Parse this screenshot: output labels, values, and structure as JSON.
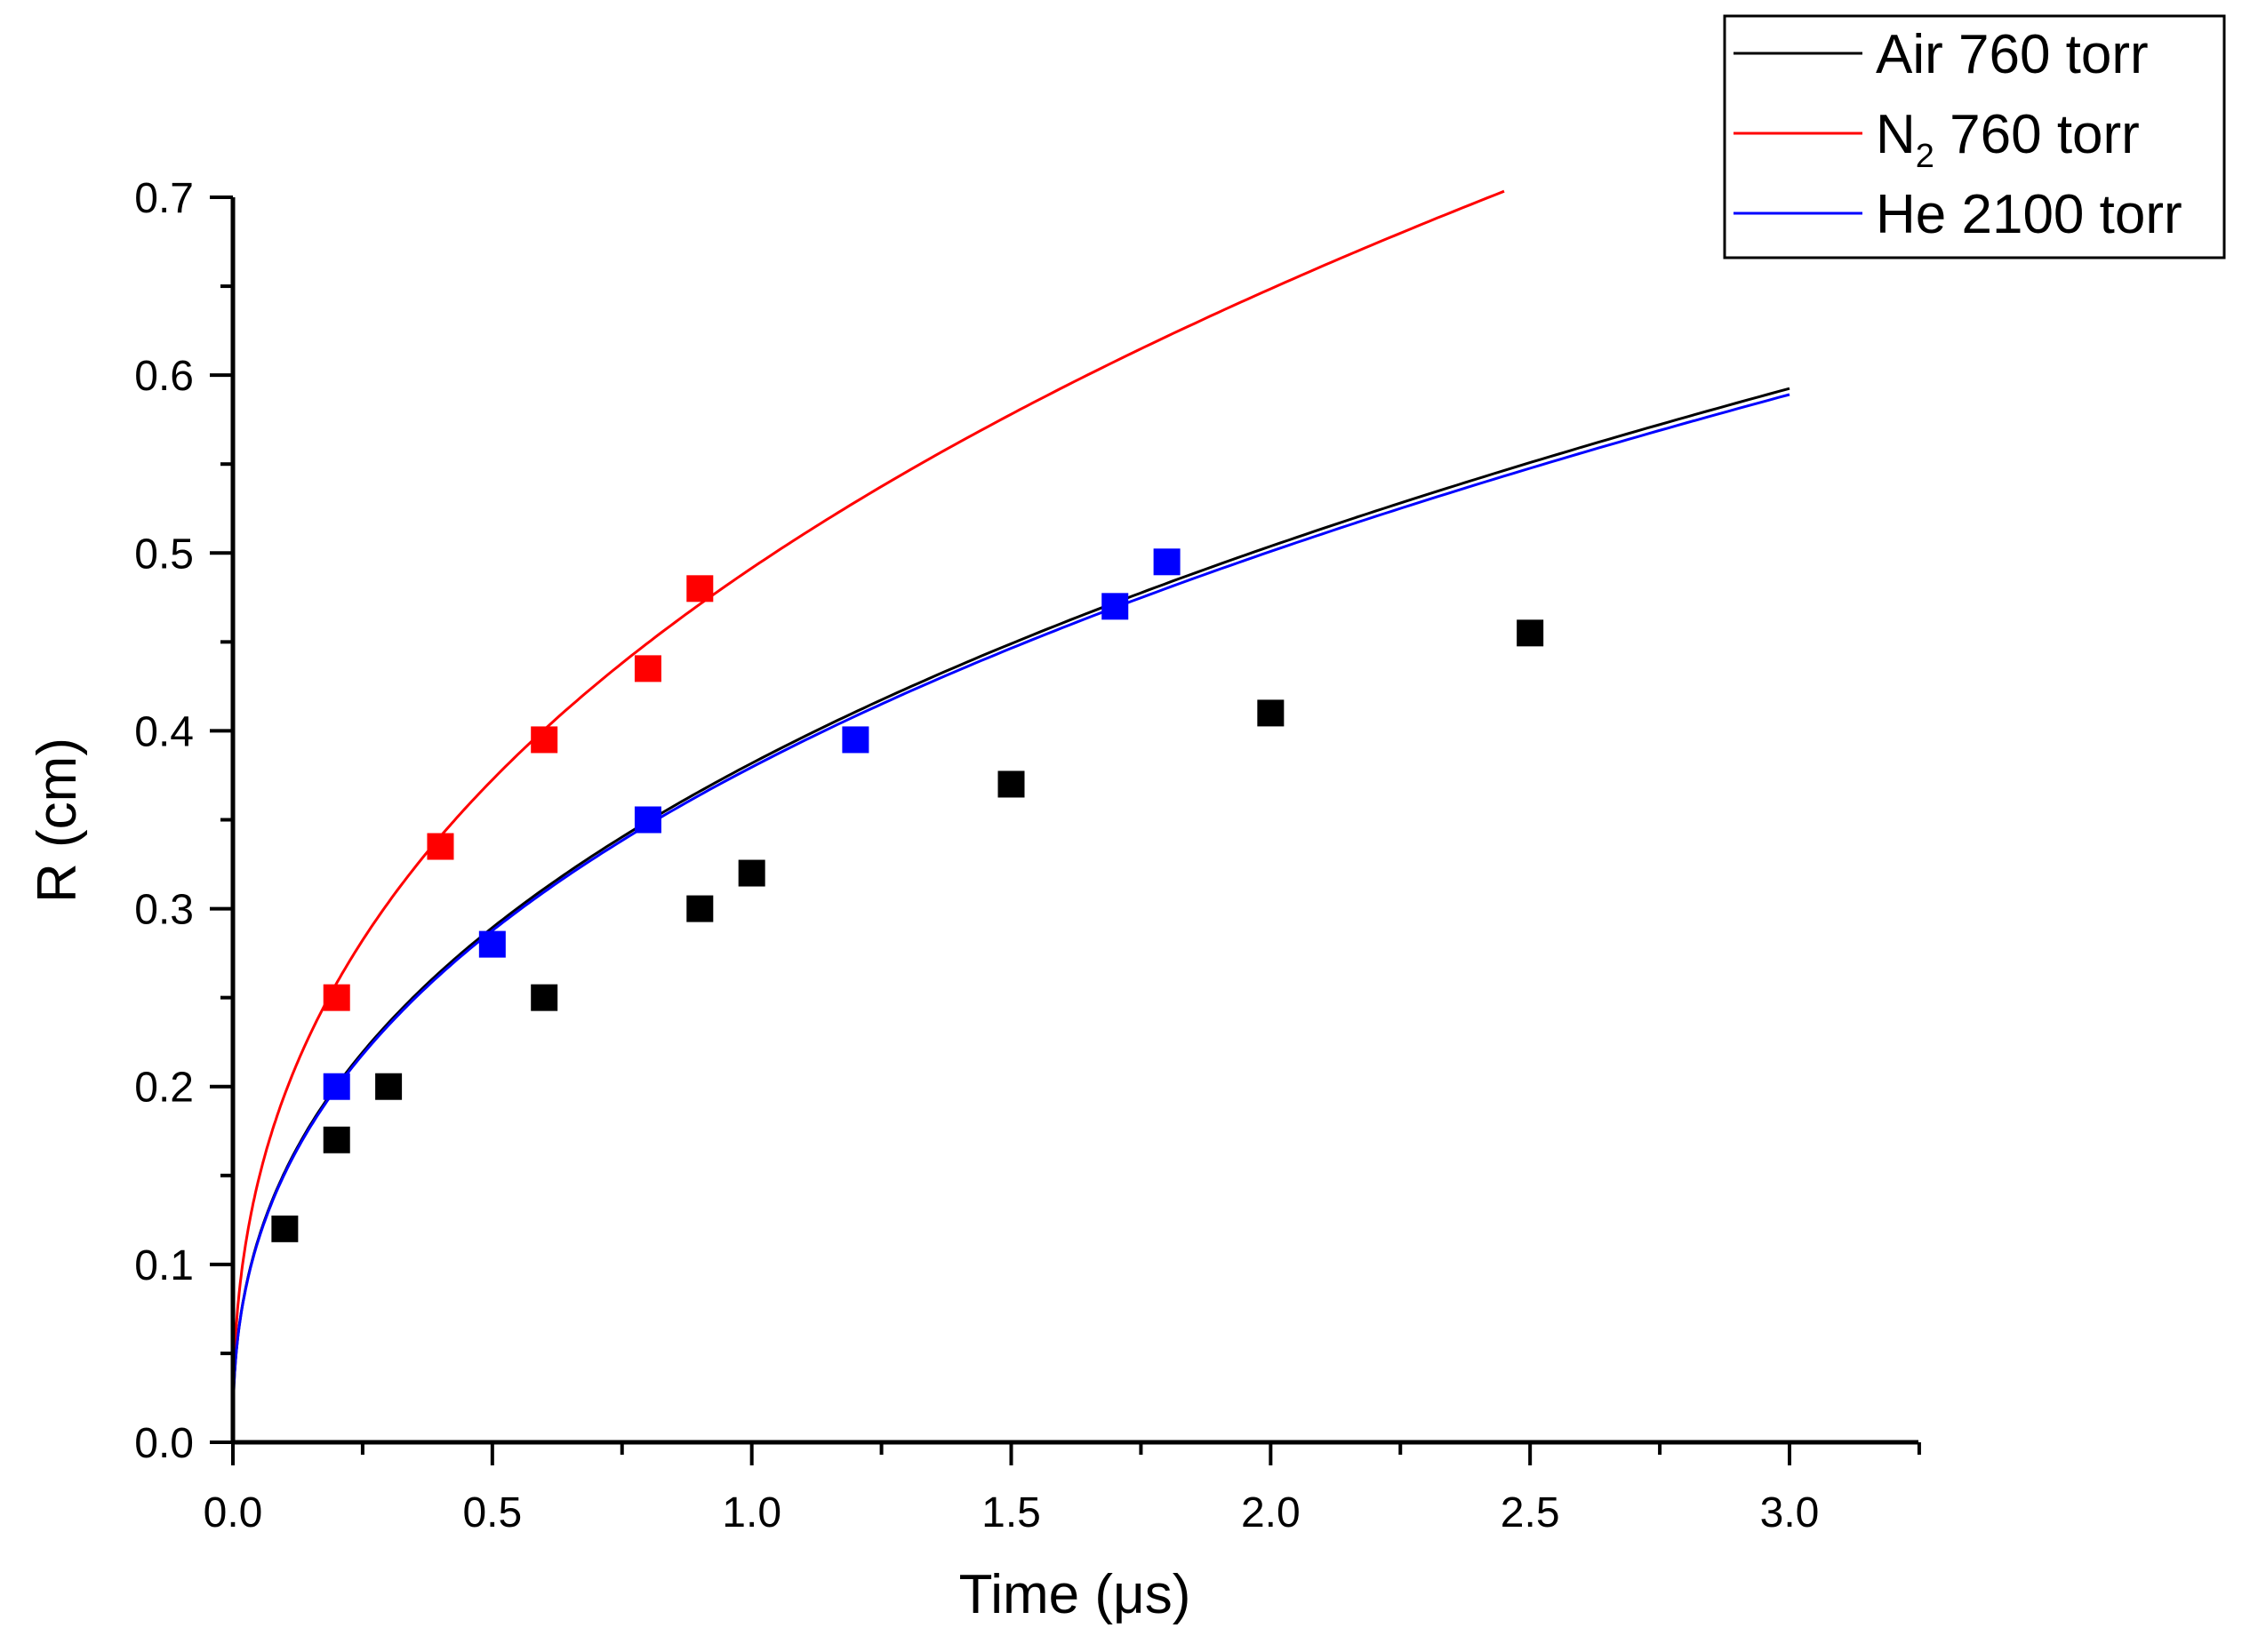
{
  "chart_data": {
    "type": "scatter",
    "title": "",
    "xlabel": "Time (μs)",
    "ylabel": "R (cm)",
    "xlim": [
      0,
      3.25
    ],
    "ylim": [
      0,
      0.7
    ],
    "x_ticks": [
      0.0,
      0.5,
      1.0,
      1.5,
      2.0,
      2.5,
      3.0
    ],
    "x_tick_labels": [
      "0.0",
      "0.5",
      "1.0",
      "1.5",
      "2.0",
      "2.5",
      "3.0"
    ],
    "y_ticks": [
      0.0,
      0.1,
      0.2,
      0.3,
      0.4,
      0.5,
      0.6,
      0.7
    ],
    "y_tick_labels": [
      "0.0",
      "0.1",
      "0.2",
      "0.3",
      "0.4",
      "0.5",
      "0.6",
      "0.7"
    ],
    "grid": false,
    "legend_position": "top-right, outside plot",
    "series": [
      {
        "name": "Air 760 torr",
        "legend_main": "Air 760 torr",
        "legend_sub": "",
        "legend_rest": "",
        "color": "#000000",
        "points": [
          [
            0.1,
            0.12
          ],
          [
            0.2,
            0.17
          ],
          [
            0.3,
            0.2
          ],
          [
            0.6,
            0.25
          ],
          [
            0.9,
            0.3
          ],
          [
            1.0,
            0.32
          ],
          [
            1.5,
            0.37
          ],
          [
            2.0,
            0.41
          ],
          [
            2.5,
            0.455
          ]
        ],
        "fit": {
          "model": "power",
          "a": 0.3818,
          "b": 0.4,
          "x_end": 3.0
        }
      },
      {
        "name": "N2 760 torr",
        "legend_main": "N",
        "legend_sub": "2",
        "legend_rest": " 760 torr",
        "color": "#ff0000",
        "points": [
          [
            0.2,
            0.25
          ],
          [
            0.4,
            0.335
          ],
          [
            0.6,
            0.395
          ],
          [
            0.8,
            0.435
          ],
          [
            0.9,
            0.48
          ]
        ],
        "fit": {
          "model": "power",
          "a": 0.4915,
          "b": 0.4,
          "x_end": 2.45
        }
      },
      {
        "name": "He 2100 torr",
        "legend_main": "He 2100 torr",
        "legend_sub": "",
        "legend_rest": "",
        "color": "#0000ff",
        "points": [
          [
            0.2,
            0.2
          ],
          [
            0.5,
            0.28
          ],
          [
            0.8,
            0.35
          ],
          [
            1.2,
            0.395
          ],
          [
            1.7,
            0.47
          ],
          [
            1.8,
            0.495
          ]
        ],
        "fit": {
          "model": "power",
          "a": 0.3796,
          "b": 0.4,
          "x_end": 3.0
        }
      }
    ]
  }
}
